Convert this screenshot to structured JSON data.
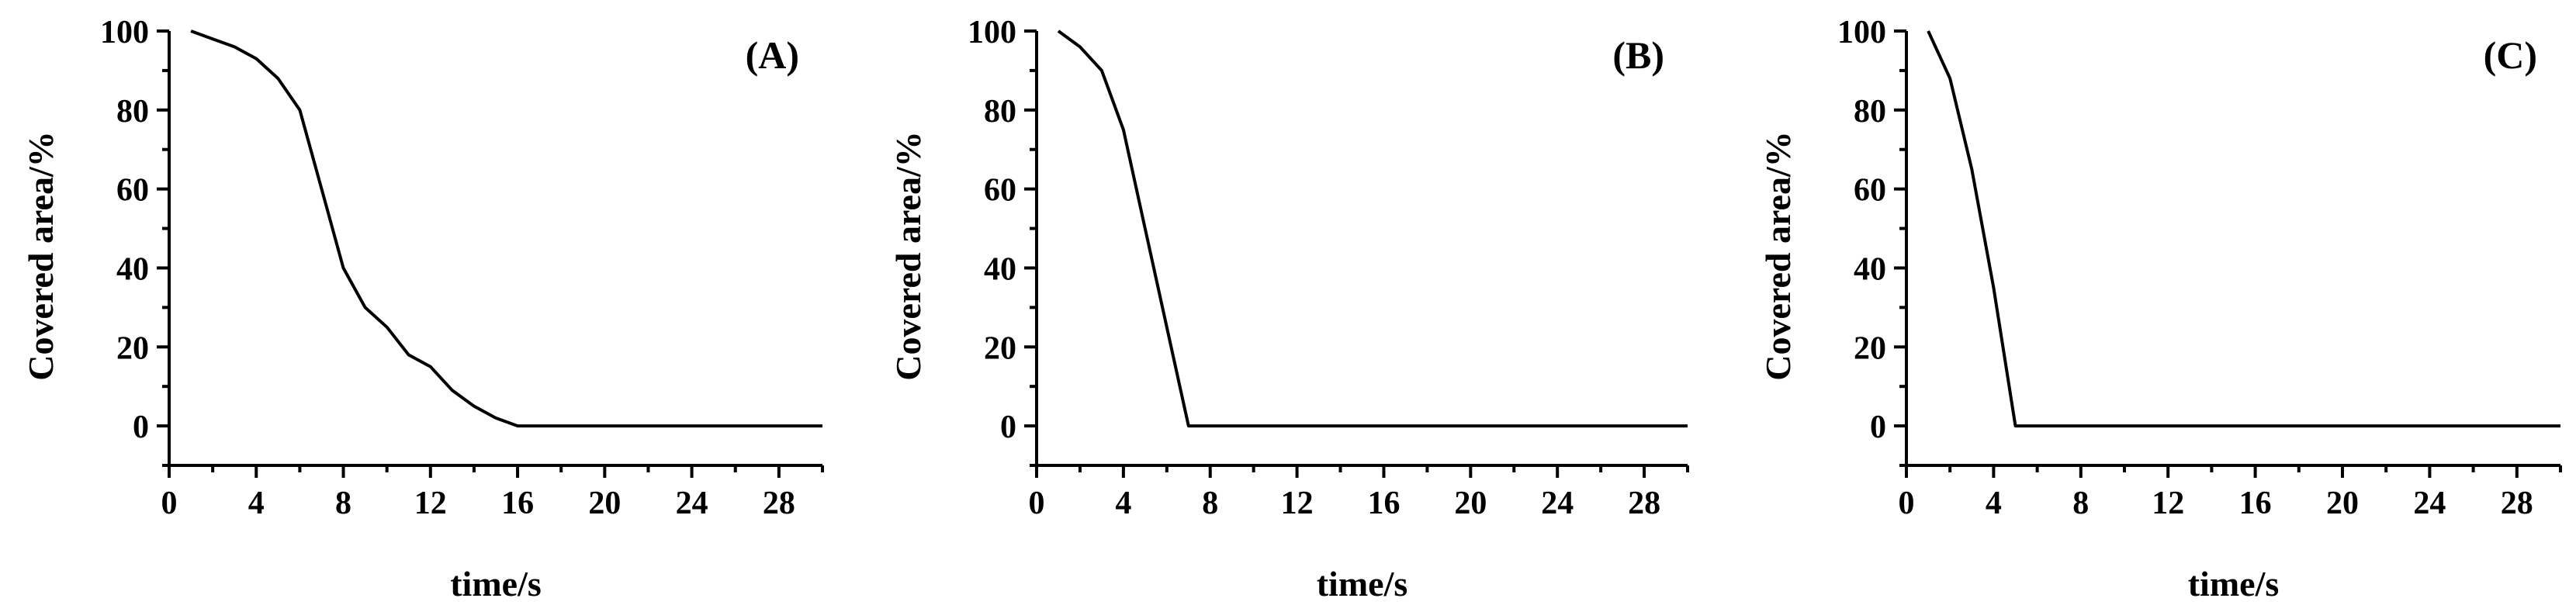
{
  "chart_data": [
    {
      "type": "line",
      "panel_label": "(A)",
      "xlabel": "time/s",
      "ylabel": "Covered area/%",
      "xlim": [
        0,
        30
      ],
      "ylim": [
        -10,
        100
      ],
      "x_ticks": [
        0,
        4,
        8,
        12,
        16,
        20,
        24,
        28
      ],
      "y_ticks": [
        0,
        20,
        40,
        60,
        80,
        100
      ],
      "grid": false,
      "series": [
        {
          "x": [
            1,
            2,
            3,
            4,
            5,
            6,
            7,
            8,
            9,
            10,
            11,
            12,
            13,
            14,
            15,
            16,
            17,
            18,
            19,
            20,
            21,
            22,
            23,
            24,
            25,
            26,
            27,
            28,
            29,
            30
          ],
          "y": [
            100,
            98,
            96,
            93,
            88,
            80,
            60,
            40,
            30,
            25,
            18,
            15,
            9,
            5,
            2,
            0,
            0,
            0,
            0,
            0,
            0,
            0,
            0,
            0,
            0,
            0,
            0,
            0,
            0,
            0
          ]
        }
      ]
    },
    {
      "type": "line",
      "panel_label": "(B)",
      "xlabel": "time/s",
      "ylabel": "Covered area/%",
      "xlim": [
        0,
        30
      ],
      "ylim": [
        -10,
        100
      ],
      "x_ticks": [
        0,
        4,
        8,
        12,
        16,
        20,
        24,
        28
      ],
      "y_ticks": [
        0,
        20,
        40,
        60,
        80,
        100
      ],
      "grid": false,
      "series": [
        {
          "x": [
            1,
            2,
            3,
            4,
            5,
            6,
            7,
            8,
            10,
            12,
            14,
            16,
            18,
            20,
            22,
            24,
            26,
            28,
            30
          ],
          "y": [
            100,
            96,
            90,
            75,
            50,
            25,
            0,
            0,
            0,
            0,
            0,
            0,
            0,
            0,
            0,
            0,
            0,
            0,
            0
          ]
        }
      ]
    },
    {
      "type": "line",
      "panel_label": "(C)",
      "xlabel": "time/s",
      "ylabel": "Covered area/%",
      "xlim": [
        0,
        30
      ],
      "ylim": [
        -10,
        100
      ],
      "x_ticks": [
        0,
        4,
        8,
        12,
        16,
        20,
        24,
        28
      ],
      "y_ticks": [
        0,
        20,
        40,
        60,
        80,
        100
      ],
      "grid": false,
      "series": [
        {
          "x": [
            1,
            2,
            3,
            4,
            5,
            6,
            8,
            10,
            12,
            14,
            16,
            18,
            20,
            22,
            24,
            26,
            28,
            30
          ],
          "y": [
            100,
            88,
            65,
            35,
            0,
            0,
            0,
            0,
            0,
            0,
            0,
            0,
            0,
            0,
            0,
            0,
            0,
            0
          ]
        }
      ]
    }
  ]
}
